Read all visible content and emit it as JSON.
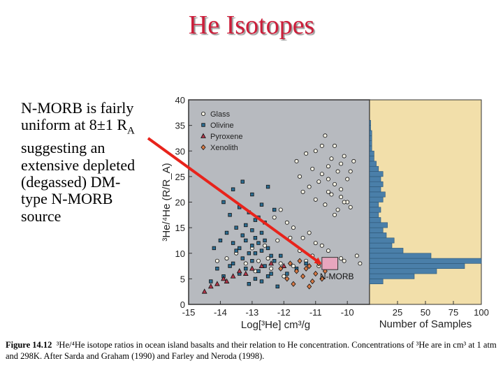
{
  "slide": {
    "title": "He Isotopes",
    "body_text": "N-MORB is fairly uniform at 8±1 RA suggesting an extensive depleted (degassed) DM-type N-MORB source",
    "body_lines": [
      "N-MORB is fairly",
      "uniform at 8±1 R",
      "suggesting an",
      "extensive depleted",
      "(degassed) DM-",
      "type N-MORB",
      "source"
    ],
    "ra_subscript": "A",
    "caption_label": "Figure 14.12",
    "caption_text": "³He/⁴He isotope ratios in ocean island basalts and their relation to He concentration. Concentrations of ³He are in cm³ at 1 atm and 298K. After Sarda and Graham (1990) and Farley and Neroda (1998).",
    "colors": {
      "title": "#cc1e3a",
      "plot_bg": "#b7babf",
      "hist_bg": "#f2dfaa",
      "hist_bar": "#4a7fa9",
      "arrow": "#e8231b",
      "nmorb_box": "#e7a6be"
    }
  },
  "chart_data": {
    "type": "scatter",
    "title": "",
    "xlabel": "Log[³He]  cm³/g",
    "ylabel": "³He/⁴He (R/R_A)",
    "xlim": [
      -15,
      -9.3
    ],
    "ylim": [
      0,
      40
    ],
    "x_ticks": [
      "-15",
      "-14",
      "-13",
      "-12",
      "-11",
      "-10"
    ],
    "y_ticks": [
      "0",
      "5",
      "10",
      "15",
      "20",
      "25",
      "30",
      "35",
      "40"
    ],
    "legend": [
      "Glass",
      "Olivine",
      "Pyroxene",
      "Xenolith"
    ],
    "legend_position": "top-left",
    "annotation": "N-MORB",
    "nmorb_box": {
      "x": [
        -10.8,
        -10.3
      ],
      "y": [
        6.8,
        9.2
      ]
    },
    "series": [
      {
        "name": "Glass",
        "marker": "circle",
        "color": "#f4f1e4",
        "x": [
          -11.6,
          -11.3,
          -11.0,
          -10.8,
          -10.7,
          -10.6,
          -10.5,
          -10.4,
          -10.3,
          -10.2,
          -10.1,
          -10.0,
          -9.9,
          -9.8,
          -11.2,
          -10.9,
          -10.6,
          -10.4,
          -10.2,
          -10.0,
          -11.5,
          -11.1,
          -10.8,
          -10.5,
          -10.3,
          -10.1,
          -9.9,
          -11.4,
          -11.0,
          -10.7,
          -10.4,
          -10.6,
          -10.2,
          -12.3,
          -12.1,
          -11.9,
          -11.7,
          -11.4,
          -11.2,
          -11.0,
          -10.8,
          -13.5,
          -13.0,
          -12.6,
          -12.2,
          -11.8,
          -11.5,
          -11.1,
          -10.6,
          -10.2,
          -9.7,
          -14.1,
          -13.8,
          -13.2,
          -12.8,
          -12.5,
          -12.1,
          -11.7,
          -11.3,
          -10.9,
          -10.5,
          -10.1,
          -9.6,
          -12.9,
          -12.4,
          -12.0
        ],
        "y": [
          28,
          29.5,
          30,
          31,
          33,
          27,
          28.5,
          31,
          26,
          27.5,
          29,
          24.5,
          26,
          28,
          23,
          24,
          22,
          23.5,
          21,
          20,
          25,
          26.5,
          25.5,
          21.5,
          18.5,
          20,
          19,
          22,
          20.5,
          19.5,
          17.5,
          24.5,
          22.5,
          17,
          18.5,
          16,
          15,
          13,
          14,
          12,
          11.5,
          10,
          11,
          11.5,
          12.5,
          13,
          10.5,
          9.5,
          10.5,
          9,
          9.5,
          8.5,
          9,
          8,
          8.5,
          9,
          8,
          7.5,
          8.5,
          7.5,
          8,
          8.5,
          8,
          6.5,
          7,
          5.5
        ]
      },
      {
        "name": "Olivine",
        "marker": "square",
        "color": "#2b6c91",
        "x": [
          -13.9,
          -13.6,
          -13.3,
          -13.0,
          -12.7,
          -12.5,
          -12.3,
          -12.8,
          -13.1,
          -13.4,
          -13.7,
          -12.9,
          -12.6,
          -13.2,
          -13.5,
          -13.0,
          -12.7,
          -13.3,
          -12.9,
          -12.6,
          -13.6,
          -13.2,
          -12.8,
          -13.0,
          -12.5,
          -13.4,
          -12.7,
          -13.1,
          -12.9,
          -13.5,
          -12.4,
          -14.2,
          -14.0,
          -13.8,
          -13.3,
          -12.3,
          -12.1,
          -13.6,
          -13.0,
          -12.6,
          -14.1,
          -13.7,
          -13.2,
          -12.8,
          -12.4,
          -13.9,
          -13.4,
          -12.9,
          -12.5,
          -14.3,
          -13.1,
          -12.7,
          -12.2,
          -11.9,
          -11.6,
          -11.3
        ],
        "y": [
          20,
          22.5,
          24,
          21.5,
          19.5,
          23,
          18.5,
          17,
          18,
          19,
          17.5,
          16.5,
          16,
          15.5,
          15,
          14.5,
          14,
          13.5,
          13,
          12.5,
          12,
          12.5,
          12,
          11.5,
          11,
          11,
          10.5,
          10,
          10,
          10.5,
          9.5,
          11,
          12.5,
          14,
          9,
          8.5,
          9.5,
          8,
          8.5,
          7.5,
          7,
          7.5,
          7,
          6.5,
          6,
          5.5,
          6,
          5,
          5.5,
          4.5,
          4,
          4.5,
          3.5,
          6,
          7,
          8
        ]
      },
      {
        "name": "Pyroxene",
        "marker": "triangle",
        "color": "#b5364a",
        "x": [
          -14.5,
          -14.3,
          -14.1,
          -13.9,
          -13.6,
          -13.4,
          -13.0,
          -12.7,
          -12.4,
          -12.0,
          -13.8,
          -13.2
        ],
        "y": [
          2.5,
          3.5,
          4,
          5,
          5.5,
          6.5,
          7,
          7.5,
          8,
          7.5,
          4.5,
          6
        ]
      },
      {
        "name": "Xenolith",
        "marker": "diamond",
        "color": "#d97a46",
        "x": [
          -11.8,
          -11.5,
          -11.2,
          -10.9,
          -11.6,
          -11.3,
          -11.0,
          -10.7,
          -11.9,
          -11.4,
          -11.1,
          -10.8,
          -12.1,
          -11.7,
          -11.2
        ],
        "y": [
          8,
          8.5,
          7.5,
          8,
          6.5,
          7,
          6,
          6.5,
          5,
          5.5,
          4.5,
          5,
          7,
          4,
          3.5
        ]
      }
    ],
    "histogram": {
      "xlabel": "Number of Samples",
      "x_ticks": [
        "25",
        "50",
        "75",
        "100"
      ],
      "xlim": [
        0,
        100
      ],
      "bin_width": 1,
      "bin_starts": [
        4,
        5,
        6,
        7,
        8,
        9,
        10,
        11,
        12,
        13,
        14,
        15,
        16,
        17,
        18,
        19,
        20,
        21,
        22,
        23,
        24,
        25,
        26,
        27,
        28,
        29,
        30,
        31,
        32,
        33,
        34,
        35
      ],
      "counts": [
        12,
        40,
        60,
        85,
        100,
        55,
        30,
        20,
        22,
        15,
        12,
        16,
        10,
        8,
        10,
        8,
        12,
        14,
        10,
        12,
        10,
        12,
        8,
        6,
        4,
        4,
        2,
        2,
        2,
        2,
        1,
        1
      ]
    }
  }
}
